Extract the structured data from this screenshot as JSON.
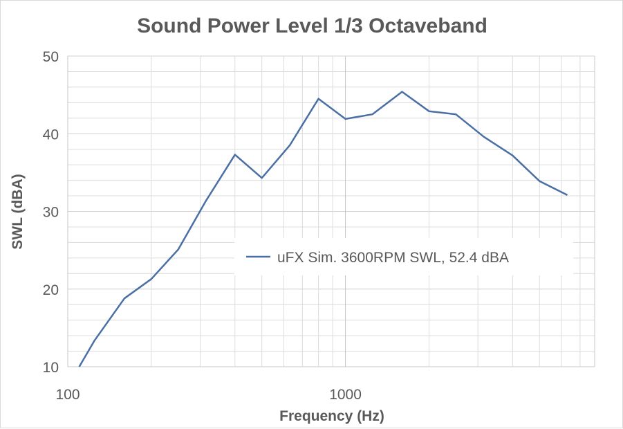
{
  "chart_data": {
    "type": "line",
    "title": "Sound Power Level 1/3 Octaveband",
    "xlabel": "Frequency (Hz)",
    "ylabel": "SWL (dBA)",
    "xscale": "log",
    "xlim": [
      100,
      7900
    ],
    "ylim": [
      10,
      50
    ],
    "yticks": [
      "10",
      "20",
      "30",
      "40",
      "50"
    ],
    "xticks": [
      "100",
      "1000"
    ],
    "grid": true,
    "legend_position": "right",
    "series": [
      {
        "name": "uFX Sim. 3600RPM SWL, 52.4 dBA",
        "color": "#4a6fa5",
        "points": [
          [
            110,
            10
          ],
          [
            125,
            13.4
          ],
          [
            160,
            18.8
          ],
          [
            200,
            21.3
          ],
          [
            250,
            25.1
          ],
          [
            315,
            31.4
          ],
          [
            400,
            37.3
          ],
          [
            500,
            34.3
          ],
          [
            630,
            38.5
          ],
          [
            800,
            44.5
          ],
          [
            1000,
            41.9
          ],
          [
            1250,
            42.5
          ],
          [
            1600,
            45.4
          ],
          [
            2000,
            42.9
          ],
          [
            2500,
            42.5
          ],
          [
            3150,
            39.6
          ],
          [
            4000,
            37.2
          ],
          [
            5000,
            33.9
          ],
          [
            6300,
            32.1
          ]
        ]
      }
    ]
  }
}
